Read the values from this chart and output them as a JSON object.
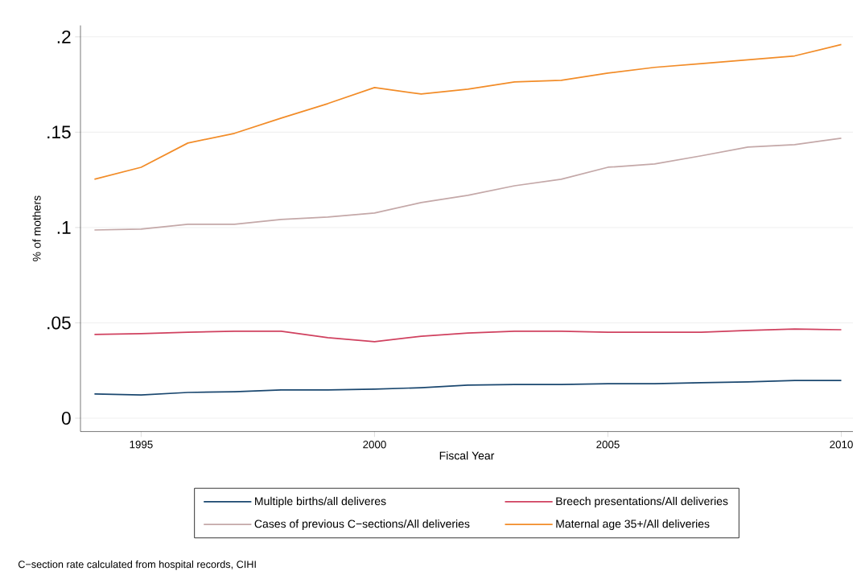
{
  "chart_data": {
    "type": "line",
    "xlabel": "Fiscal Year",
    "ylabel": "% of mothers",
    "x": [
      1994,
      1995,
      1996,
      1997,
      1998,
      1999,
      2000,
      2001,
      2002,
      2003,
      2004,
      2005,
      2006,
      2007,
      2008,
      2009,
      2010
    ],
    "series": [
      {
        "name": "Multiple births/all deliveres",
        "color": "#1a476f",
        "values": [
          0.0127,
          0.0122,
          0.0135,
          0.0139,
          0.0148,
          0.0148,
          0.0152,
          0.016,
          0.0173,
          0.0177,
          0.0177,
          0.0181,
          0.0181,
          0.0186,
          0.019,
          0.0198,
          0.0198
        ]
      },
      {
        "name": "Breech presentations/All deliveries",
        "color": "#d0415f",
        "values": [
          0.0439,
          0.0443,
          0.0451,
          0.0456,
          0.0456,
          0.0422,
          0.0401,
          0.043,
          0.0447,
          0.0456,
          0.0456,
          0.0451,
          0.0451,
          0.0451,
          0.046,
          0.0468,
          0.0464
        ]
      },
      {
        "name": "Cases of previous C−sections/All deliveries",
        "color": "#c4a8a8",
        "values": [
          0.0987,
          0.0992,
          0.1017,
          0.1017,
          0.1042,
          0.1055,
          0.1076,
          0.1131,
          0.1169,
          0.1219,
          0.1253,
          0.1316,
          0.1333,
          0.1376,
          0.1422,
          0.1435,
          0.1468
        ]
      },
      {
        "name": "Maternal age 35+/All deliveries",
        "color": "#f28c28",
        "values": [
          0.1253,
          0.1316,
          0.1443,
          0.1494,
          0.1574,
          0.165,
          0.1734,
          0.17,
          0.1726,
          0.1764,
          0.1772,
          0.181,
          0.184,
          0.186,
          0.188,
          0.19,
          0.196
        ]
      }
    ],
    "xlim": [
      1993.7,
      2010.25
    ],
    "ylim": [
      -0.007,
      0.206
    ],
    "xticks": [
      1995,
      2000,
      2005,
      2010
    ],
    "yticks": [
      {
        "value": 0,
        "label": "0"
      },
      {
        "value": 0.05,
        "label": ".05"
      },
      {
        "value": 0.1,
        "label": ".1"
      },
      {
        "value": 0.15,
        "label": ".15"
      },
      {
        "value": 0.2,
        "label": ".2"
      }
    ],
    "grid": "y",
    "legend": "bottom",
    "line_style": "solid",
    "annotations": [
      "C−section rate calculated from hospital records, CIHI"
    ]
  }
}
